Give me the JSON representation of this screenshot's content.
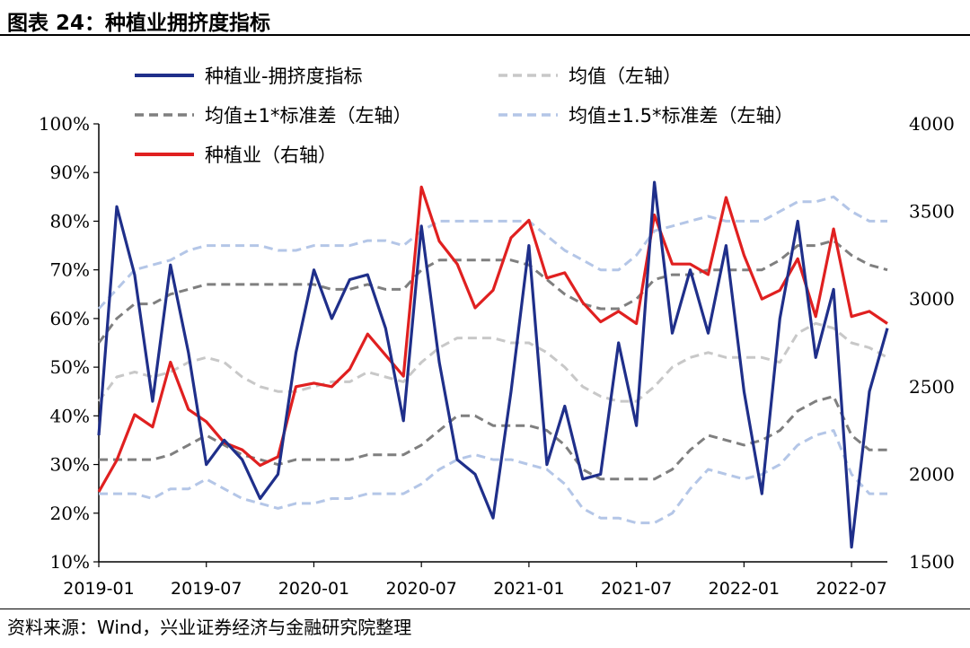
{
  "title": "图表 24：种植业拥挤度指标",
  "source": "资料来源：Wind，兴业证券经济与金融研究院整理",
  "chart_data": {
    "type": "line",
    "title": "图表 24：种植业拥挤度指标",
    "x": [
      "2019-01",
      "2019-02",
      "2019-03",
      "2019-04",
      "2019-05",
      "2019-06",
      "2019-07",
      "2019-08",
      "2019-09",
      "2019-10",
      "2019-11",
      "2019-12",
      "2020-01",
      "2020-02",
      "2020-03",
      "2020-04",
      "2020-05",
      "2020-06",
      "2020-07",
      "2020-08",
      "2020-09",
      "2020-10",
      "2020-11",
      "2020-12",
      "2021-01",
      "2021-02",
      "2021-03",
      "2021-04",
      "2021-05",
      "2021-06",
      "2021-07",
      "2021-08",
      "2021-09",
      "2021-10",
      "2021-11",
      "2021-12",
      "2022-01",
      "2022-02",
      "2022-03",
      "2022-04",
      "2022-05",
      "2022-06",
      "2022-07",
      "2022-08",
      "2022-09"
    ],
    "x_ticks": [
      "2019-01",
      "2019-07",
      "2020-01",
      "2020-07",
      "2021-01",
      "2021-07",
      "2022-01",
      "2022-07"
    ],
    "left_axis": {
      "ylim": [
        10,
        100
      ],
      "ticks": [
        "10%",
        "20%",
        "30%",
        "40%",
        "50%",
        "60%",
        "70%",
        "80%",
        "90%",
        "100%"
      ]
    },
    "right_axis": {
      "ylim": [
        1500,
        4000
      ],
      "ticks": [
        "1500",
        "2000",
        "2500",
        "3000",
        "3500",
        "4000"
      ]
    },
    "legend_placement": "top",
    "grid": false,
    "series": [
      {
        "name": "种植业-拥挤度指标",
        "axis": "left",
        "color": "#1f2f8a",
        "dash": "solid",
        "values": [
          36,
          83,
          69,
          43,
          71,
          53,
          30,
          35,
          31,
          23,
          28,
          53,
          70,
          60,
          68,
          69,
          58,
          39,
          79,
          51,
          31,
          28,
          19,
          45,
          75,
          30,
          42,
          27,
          28,
          55,
          38,
          88,
          57,
          70,
          57,
          75,
          45,
          24,
          60,
          80,
          52,
          66,
          13,
          45,
          58
        ]
      },
      {
        "name": "均值（左轴）",
        "axis": "left",
        "color": "#c8c8c8",
        "dash": "dash",
        "values": [
          43,
          48,
          49,
          48,
          49,
          51,
          52,
          51,
          48,
          46,
          45,
          45,
          46,
          47,
          47,
          49,
          48,
          47,
          51,
          54,
          56,
          56,
          56,
          55,
          55,
          53,
          50,
          46,
          44,
          43,
          43,
          46,
          50,
          52,
          53,
          52,
          52,
          52,
          51,
          57,
          59,
          58,
          55,
          54,
          52
        ]
      },
      {
        "name": "均值±1*标准差（左轴）",
        "axis": "left",
        "color": "#7f7f7f",
        "dash": "dash",
        "values": [
          55,
          60,
          63,
          63,
          65,
          66,
          67,
          67,
          67,
          67,
          67,
          67,
          67,
          66,
          66,
          67,
          66,
          66,
          70,
          72,
          72,
          72,
          72,
          72,
          71,
          68,
          65,
          63,
          62,
          62,
          64,
          68,
          69,
          69,
          70,
          70,
          70,
          70,
          72,
          75,
          75,
          76,
          73,
          71,
          70
        ]
      },
      {
        "name": "均值±1*标准差（左轴）",
        "axis": "left",
        "color": "#7f7f7f",
        "dash": "dash",
        "show_in_legend": false,
        "values": [
          31,
          31,
          31,
          31,
          32,
          34,
          36,
          34,
          32,
          31,
          30,
          31,
          31,
          31,
          31,
          32,
          32,
          32,
          34,
          37,
          40,
          40,
          38,
          38,
          38,
          37,
          34,
          29,
          27,
          27,
          27,
          27,
          29,
          33,
          36,
          35,
          34,
          35,
          37,
          41,
          43,
          44,
          36,
          33,
          33
        ]
      },
      {
        "name": "均值±1.5*标准差（左轴）",
        "axis": "left",
        "color": "#b4c6e7",
        "dash": "dash",
        "values": [
          62,
          66,
          70,
          71,
          72,
          74,
          75,
          75,
          75,
          75,
          74,
          74,
          75,
          75,
          75,
          76,
          76,
          75,
          78,
          80,
          80,
          80,
          80,
          80,
          80,
          77,
          74,
          72,
          70,
          70,
          73,
          78,
          79,
          80,
          81,
          80,
          80,
          80,
          82,
          84,
          84,
          85,
          82,
          80,
          80
        ]
      },
      {
        "name": "均值±1.5*标准差（左轴）",
        "axis": "left",
        "color": "#b4c6e7",
        "dash": "dash",
        "show_in_legend": false,
        "values": [
          24,
          24,
          24,
          23,
          25,
          25,
          27,
          25,
          23,
          22,
          21,
          22,
          22,
          23,
          23,
          24,
          24,
          24,
          26,
          29,
          31,
          32,
          31,
          31,
          30,
          29,
          26,
          21,
          19,
          19,
          18,
          18,
          20,
          25,
          29,
          28,
          27,
          28,
          30,
          34,
          36,
          37,
          28,
          24,
          24
        ]
      },
      {
        "name": "种植业（右轴）",
        "axis": "right",
        "color": "#e02020",
        "dash": "solid",
        "values": [
          1900,
          2080,
          2340,
          2270,
          2640,
          2370,
          2300,
          2180,
          2140,
          2050,
          2100,
          2500,
          2520,
          2500,
          2600,
          2800,
          2680,
          2560,
          3640,
          3330,
          3200,
          2950,
          3050,
          3350,
          3450,
          3120,
          3150,
          2980,
          2870,
          2930,
          2860,
          3480,
          3200,
          3200,
          3140,
          3580,
          3250,
          3000,
          3050,
          3230,
          2900,
          3400,
          2900,
          2930,
          2860
        ]
      }
    ]
  }
}
